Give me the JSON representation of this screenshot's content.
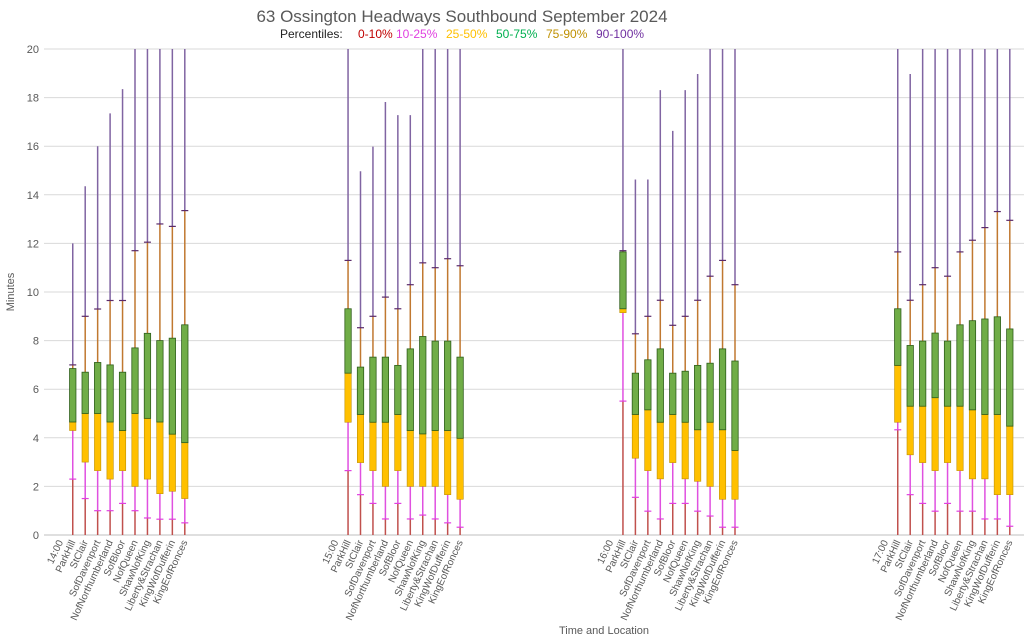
{
  "chart_data": {
    "type": "box",
    "title": "63 Ossington Headways Southbound September 2024",
    "legend": {
      "label": "Percentiles:",
      "placement": "top-center",
      "items": [
        {
          "name": "0-10%",
          "color": "#C00000"
        },
        {
          "name": "10-25%",
          "color": "#E040E0"
        },
        {
          "name": "25-50%",
          "color": "#FFC000"
        },
        {
          "name": "50-75%",
          "color": "#00B050"
        },
        {
          "name": "75-90%",
          "color": "#BF9000"
        },
        {
          "name": "90-100%",
          "color": "#7030A0"
        }
      ]
    },
    "xlabel": "Time and Location",
    "ylabel": "Minutes",
    "ylim": [
      0,
      20
    ],
    "yticks": [
      0,
      2,
      4,
      6,
      8,
      10,
      12,
      14,
      16,
      18,
      20
    ],
    "grid": true,
    "stations": [
      "ParkHill",
      "StClair",
      "SofDavenport",
      "NofNorthumberland",
      "SofBloor",
      "NofQueen",
      "ShawNofKing",
      "Liberty&Strachan",
      "KingWofDufferin",
      "KingEofRonces"
    ],
    "box_fields": [
      "p10",
      "p25",
      "p50",
      "p75",
      "p90",
      "max"
    ],
    "groups": [
      {
        "time": "14:00",
        "boxes": [
          [
            2.3,
            4.3,
            4.65,
            6.85,
            7.0,
            12.0
          ],
          [
            1.5,
            3.0,
            5.0,
            6.7,
            9.0,
            14.35
          ],
          [
            1.0,
            2.65,
            5.0,
            7.1,
            9.3,
            16.0
          ],
          [
            1.0,
            2.3,
            4.65,
            7.0,
            9.65,
            17.35
          ],
          [
            1.3,
            2.65,
            4.3,
            6.7,
            9.65,
            18.35
          ],
          [
            1.0,
            2.0,
            5.0,
            7.7,
            11.7,
            20
          ],
          [
            0.7,
            2.3,
            4.8,
            8.3,
            12.05,
            20
          ],
          [
            0.65,
            1.7,
            4.65,
            8.0,
            12.8,
            20
          ],
          [
            0.65,
            1.8,
            4.15,
            8.1,
            12.7,
            20
          ],
          [
            0.5,
            1.5,
            3.8,
            8.65,
            13.35,
            20
          ]
        ]
      },
      {
        "time": "15:00",
        "boxes": [
          [
            2.65,
            4.64,
            6.66,
            9.31,
            11.3,
            20
          ],
          [
            1.66,
            2.98,
            4.96,
            6.91,
            8.53,
            14.97
          ],
          [
            1.3,
            2.65,
            4.64,
            7.32,
            9.0,
            15.98
          ],
          [
            0.66,
            2.0,
            4.64,
            7.32,
            9.79,
            17.82
          ],
          [
            1.3,
            2.65,
            4.96,
            6.98,
            9.31,
            17.28
          ],
          [
            0.66,
            2.0,
            4.3,
            7.66,
            10.3,
            17.28
          ],
          [
            0.82,
            2.0,
            4.16,
            8.17,
            11.2,
            20
          ],
          [
            0.66,
            2.0,
            4.3,
            7.98,
            11.0,
            20
          ],
          [
            0.5,
            1.66,
            4.3,
            7.98,
            11.37,
            20
          ],
          [
            0.32,
            1.47,
            3.98,
            7.32,
            11.08,
            20
          ]
        ]
      },
      {
        "time": "16:00",
        "boxes": [
          [
            5.51,
            9.15,
            9.31,
            11.65,
            11.7,
            20
          ],
          [
            1.55,
            3.16,
            4.96,
            6.66,
            8.28,
            14.63
          ],
          [
            0.98,
            2.65,
            5.15,
            7.21,
            9.0,
            14.63
          ],
          [
            0.66,
            2.31,
            4.64,
            7.66,
            9.66,
            18.31
          ],
          [
            1.3,
            2.98,
            4.96,
            6.66,
            8.63,
            16.63
          ],
          [
            1.3,
            2.31,
            4.64,
            6.74,
            9.0,
            18.31
          ],
          [
            0.98,
            2.21,
            4.33,
            6.98,
            9.66,
            18.97
          ],
          [
            0.78,
            2.0,
            4.64,
            7.07,
            10.65,
            20
          ],
          [
            0.32,
            1.47,
            4.33,
            7.66,
            11.3,
            20
          ],
          [
            0.32,
            1.47,
            3.48,
            7.16,
            10.3,
            20
          ]
        ]
      },
      {
        "time": "17:00",
        "boxes": [
          [
            4.33,
            4.64,
            6.98,
            9.31,
            11.65,
            20
          ],
          [
            1.66,
            3.3,
            5.3,
            7.8,
            9.66,
            18.97
          ],
          [
            1.3,
            2.98,
            5.3,
            7.98,
            10.3,
            20
          ],
          [
            0.98,
            2.65,
            5.65,
            8.31,
            11.0,
            20
          ],
          [
            1.3,
            2.98,
            5.3,
            7.98,
            10.65,
            20
          ],
          [
            0.98,
            2.65,
            5.3,
            8.65,
            11.65,
            20
          ],
          [
            0.98,
            2.31,
            5.15,
            8.82,
            12.13,
            20
          ],
          [
            0.66,
            2.31,
            4.96,
            8.89,
            12.65,
            20
          ],
          [
            0.66,
            1.66,
            4.96,
            8.98,
            13.31,
            20
          ],
          [
            0.36,
            1.66,
            4.48,
            8.48,
            12.95,
            20
          ]
        ]
      }
    ]
  }
}
